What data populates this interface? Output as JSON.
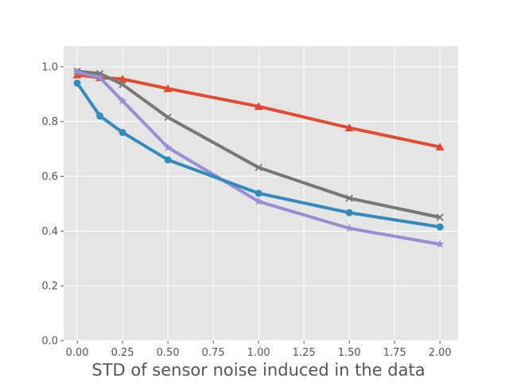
{
  "chart_data": {
    "type": "line",
    "title": "",
    "xlabel": "STD of sensor noise induced in the data",
    "ylabel": "",
    "xlim": [
      -0.075,
      2.1
    ],
    "ylim": [
      0.0,
      1.075
    ],
    "x_ticks": [
      0.0,
      0.25,
      0.5,
      0.75,
      1.0,
      1.25,
      1.5,
      1.75,
      2.0
    ],
    "x_tick_labels": [
      "0.00",
      "0.25",
      "0.50",
      "0.75",
      "1.00",
      "1.25",
      "1.50",
      "1.75",
      "2.00"
    ],
    "y_ticks": [
      0.0,
      0.2,
      0.4,
      0.6,
      0.8,
      1.0
    ],
    "y_tick_labels": [
      "0.0",
      "0.2",
      "0.4",
      "0.6",
      "0.8",
      "1.0"
    ],
    "grid": true,
    "background": "#e5e5e5",
    "x": [
      0.0,
      0.125,
      0.25,
      0.5,
      1.0,
      1.5,
      2.0
    ],
    "series": [
      {
        "color": "#e24a33",
        "marker": "triangle",
        "values": [
          0.97,
          0.96,
          0.955,
          0.92,
          0.855,
          0.777,
          0.707
        ]
      },
      {
        "color": "#777777",
        "marker": "x",
        "values": [
          0.983,
          0.975,
          0.935,
          0.815,
          0.632,
          0.52,
          0.45
        ]
      },
      {
        "color": "#988ed5",
        "marker": "star",
        "values": [
          0.98,
          0.96,
          0.875,
          0.705,
          0.508,
          0.41,
          0.352
        ]
      },
      {
        "color": "#348abd",
        "marker": "circle",
        "values": [
          0.94,
          0.82,
          0.76,
          0.66,
          0.538,
          0.467,
          0.415
        ]
      }
    ]
  }
}
